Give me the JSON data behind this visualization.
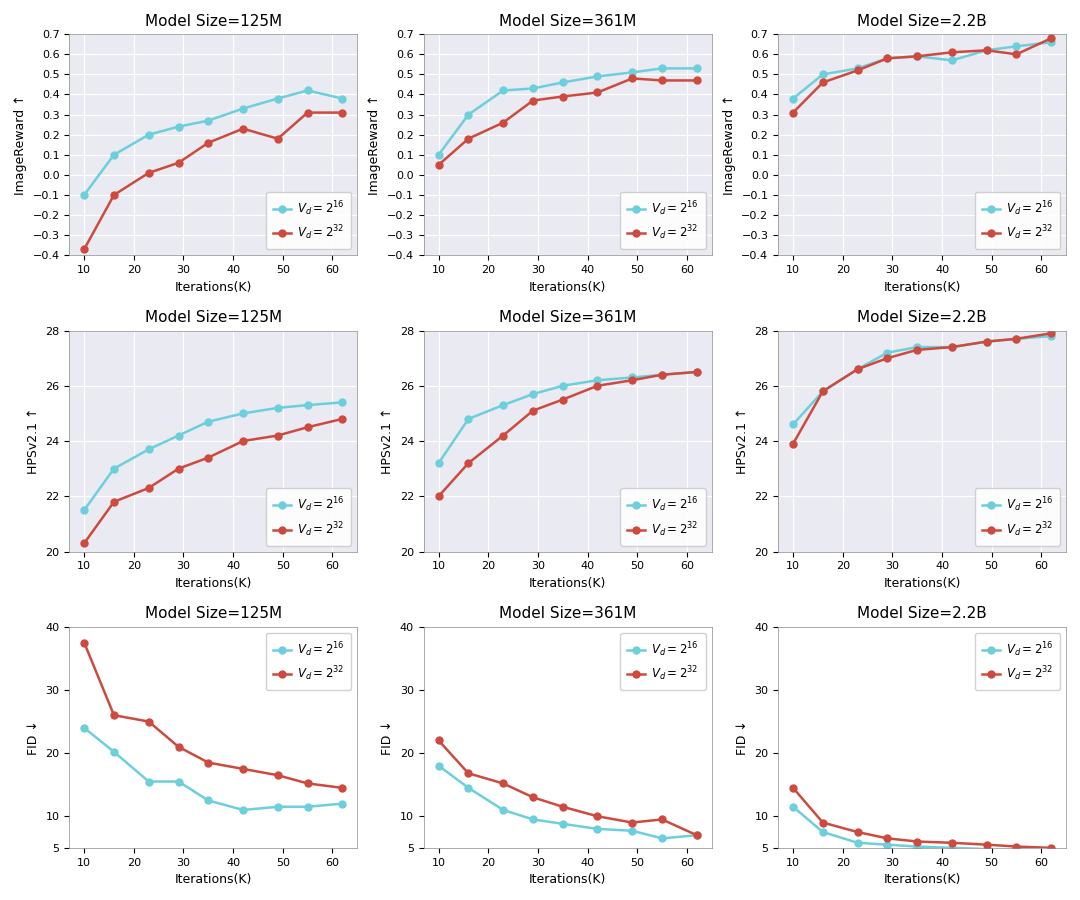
{
  "x": [
    10,
    16,
    23,
    29,
    35,
    42,
    49,
    55,
    62
  ],
  "model_sizes": [
    "125M",
    "361M",
    "2.2B"
  ],
  "metrics": [
    "ImageReward",
    "HPSv2.1",
    "FID"
  ],
  "metric_labels": [
    "ImageReward ↑",
    "HPSv2.1 ↑",
    "FID ↓"
  ],
  "color_16": "#6dcfdb",
  "color_32": "#cd4a3f",
  "data": {
    "ImageReward": {
      "125M": {
        "v16": [
          -0.1,
          0.1,
          0.2,
          0.24,
          0.27,
          0.33,
          0.38,
          0.42,
          0.38
        ],
        "v32": [
          -0.37,
          -0.1,
          0.01,
          0.06,
          0.16,
          0.23,
          0.18,
          0.31,
          0.31
        ]
      },
      "361M": {
        "v16": [
          0.1,
          0.3,
          0.42,
          0.43,
          0.46,
          0.49,
          0.51,
          0.53,
          0.53
        ],
        "v32": [
          0.05,
          0.18,
          0.26,
          0.37,
          0.39,
          0.41,
          0.48,
          0.47,
          0.47
        ]
      },
      "2.2B": {
        "v16": [
          0.38,
          0.5,
          0.53,
          0.58,
          0.59,
          0.57,
          0.62,
          0.64,
          0.66
        ],
        "v32": [
          0.31,
          0.46,
          0.52,
          0.58,
          0.59,
          0.61,
          0.62,
          0.6,
          0.68
        ]
      }
    },
    "HPSv2.1": {
      "125M": {
        "v16": [
          21.5,
          23.0,
          23.7,
          24.2,
          24.7,
          25.0,
          25.2,
          25.3,
          25.4
        ],
        "v32": [
          20.3,
          21.8,
          22.3,
          23.0,
          23.4,
          24.0,
          24.2,
          24.5,
          24.8
        ]
      },
      "361M": {
        "v16": [
          23.2,
          24.8,
          25.3,
          25.7,
          26.0,
          26.2,
          26.3,
          26.4,
          26.5
        ],
        "v32": [
          22.0,
          23.2,
          24.2,
          25.1,
          25.5,
          26.0,
          26.2,
          26.4,
          26.5
        ]
      },
      "2.2B": {
        "v16": [
          24.6,
          25.8,
          26.6,
          27.2,
          27.4,
          27.4,
          27.6,
          27.7,
          27.8
        ],
        "v32": [
          23.9,
          25.8,
          26.6,
          27.0,
          27.3,
          27.4,
          27.6,
          27.7,
          27.9
        ]
      }
    },
    "FID": {
      "125M": {
        "v16": [
          24.0,
          20.2,
          15.5,
          15.5,
          12.5,
          11.0,
          11.5,
          11.5,
          12.0
        ],
        "v32": [
          37.5,
          26.0,
          25.0,
          21.0,
          18.5,
          17.5,
          16.5,
          15.2,
          14.5
        ]
      },
      "361M": {
        "v16": [
          18.0,
          14.5,
          11.0,
          9.5,
          8.8,
          8.0,
          7.7,
          6.5,
          7.0
        ],
        "v32": [
          22.0,
          16.8,
          15.2,
          13.0,
          11.5,
          10.0,
          9.0,
          9.5,
          7.0
        ]
      },
      "2.2B": {
        "v16": [
          11.5,
          7.5,
          5.8,
          5.5,
          5.2,
          5.0,
          4.8,
          4.7,
          4.7
        ],
        "v32": [
          14.5,
          9.0,
          7.5,
          6.5,
          6.0,
          5.8,
          5.5,
          5.2,
          5.0
        ]
      }
    }
  },
  "ylims": {
    "ImageReward": [
      -0.4,
      0.7
    ],
    "HPSv2.1": [
      20,
      28
    ],
    "FID": [
      5,
      40
    ]
  },
  "yticks": {
    "ImageReward": [
      -0.4,
      -0.3,
      -0.2,
      -0.1,
      0.0,
      0.1,
      0.2,
      0.3,
      0.4,
      0.5,
      0.6,
      0.7
    ],
    "HPSv2.1": [
      20,
      22,
      24,
      26,
      28
    ],
    "FID": [
      5,
      10,
      20,
      30,
      40
    ]
  },
  "xticks": [
    10,
    20,
    30,
    40,
    50,
    60
  ],
  "xlabel": "Iterations(K)",
  "background_color": "#eaeaf2",
  "fid_background": "#ffffff"
}
